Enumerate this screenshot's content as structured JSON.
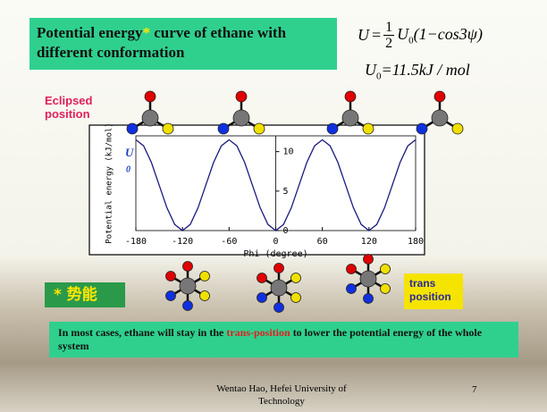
{
  "slide": {
    "title": "Potential energy",
    "title_star": "*",
    "title_rest": " curve of ethane with different conformation",
    "formula": {
      "lhs": "U",
      "eq": "=",
      "num": "1",
      "den": "2",
      "u": "U",
      "sub": "0",
      "rest": "(1−cos3ψ)"
    },
    "constant": {
      "u": "U",
      "sub": "0",
      "rest": "=11.5kJ / mol"
    },
    "eclipsed": "Eclipsed position",
    "note": "* 势能",
    "trans": "trans position",
    "conclusion_start": "In most cases, ethane will stay in the ",
    "conclusion_mark": "trans-position",
    "conclusion_end": " to lower the potential energy of the whole system",
    "footer": "Wentao Hao, Hefei University of Technology",
    "page": "7"
  },
  "chart_data": {
    "type": "line",
    "ylabel": "Potential energy (kJ/mol)",
    "xlabel": "Phi (degree)",
    "annotation": "U",
    "annotation_sub": "0",
    "x": [
      -180,
      -170,
      -160,
      -150,
      -140,
      -130,
      -120,
      -110,
      -100,
      -90,
      -80,
      -70,
      -60,
      -50,
      -40,
      -30,
      -20,
      -10,
      0,
      10,
      20,
      30,
      40,
      50,
      60,
      70,
      80,
      90,
      100,
      110,
      120,
      130,
      140,
      150,
      160,
      170,
      180
    ],
    "values": [
      11.5,
      10.73,
      8.63,
      5.75,
      2.88,
      0.77,
      0,
      0.77,
      2.88,
      5.75,
      8.63,
      10.73,
      11.5,
      10.73,
      8.63,
      5.75,
      2.88,
      0.77,
      0,
      0.77,
      2.88,
      5.75,
      8.63,
      10.73,
      11.5,
      10.73,
      8.63,
      5.75,
      2.88,
      0.77,
      0,
      0.77,
      2.88,
      5.75,
      8.63,
      10.73,
      11.5
    ],
    "color": "#1a1a80",
    "xlim": [
      -180,
      180
    ],
    "ylim": [
      0,
      12
    ],
    "xticks": [
      -180,
      -120,
      -60,
      0,
      60,
      120,
      180
    ],
    "yticks": [
      0,
      5,
      10
    ]
  }
}
